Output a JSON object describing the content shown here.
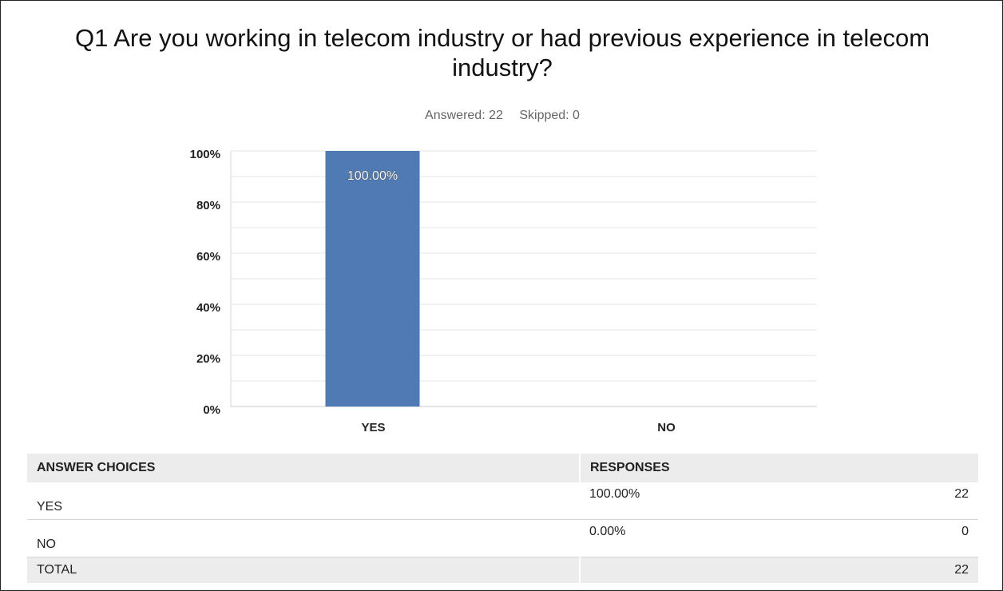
{
  "question": {
    "title": "Q1 Are you working in telecom industry or had previous experience in telecom industry?",
    "answered": "Answered: 22",
    "skipped": "Skipped: 0"
  },
  "chart_data": {
    "type": "bar",
    "categories": [
      "YES",
      "NO"
    ],
    "values": [
      100,
      0
    ],
    "data_labels": [
      "100.00%",
      ""
    ],
    "yticks": [
      "0%",
      "20%",
      "40%",
      "60%",
      "80%",
      "100%"
    ],
    "ylim": [
      0,
      100
    ],
    "grid": true,
    "bar_color": "#4f7ab3",
    "title": "",
    "xlabel": "",
    "ylabel": ""
  },
  "table": {
    "headers": [
      "ANSWER CHOICES",
      "RESPONSES"
    ],
    "rows": [
      {
        "choice": "YES",
        "percent": "100.00%",
        "count": "22"
      },
      {
        "choice": "NO",
        "percent": "0.00%",
        "count": "0"
      }
    ],
    "total_label": "TOTAL",
    "total_count": "22"
  }
}
